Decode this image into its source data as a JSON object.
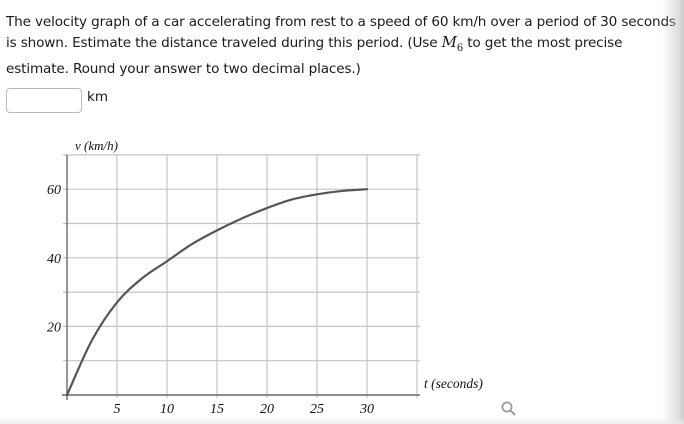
{
  "question": {
    "text_before": "The velocity graph of a car accelerating from rest to a speed of 60 km/h over a period of 30 seconds is shown. Estimate the distance traveled during this period. (Use ",
    "math_symbol": "M",
    "math_subscript": "6",
    "text_after": " to get the most precise estimate. Round your answer to two decimal places.)"
  },
  "answer": {
    "value": "",
    "placeholder": "",
    "unit": "km"
  },
  "icons": {
    "zoom": "magnifier-icon"
  },
  "colors": {
    "curve": "#555555",
    "grid": "#c4c4c4",
    "axis": "#6a6a6a",
    "text": "#1a1a1a"
  },
  "chart_data": {
    "type": "line",
    "title": "",
    "xlabel": "t (seconds)",
    "ylabel": "v (km/h)",
    "xlim": [
      0,
      35
    ],
    "ylim": [
      0,
      70
    ],
    "x_ticks": [
      5,
      10,
      15,
      20,
      25,
      30
    ],
    "x_tick_labels": [
      "5",
      "10",
      "15",
      "20",
      "25",
      "30"
    ],
    "y_ticks": [
      20,
      40,
      60
    ],
    "y_tick_labels": [
      "20",
      "40",
      "60"
    ],
    "grid": true,
    "grid_x_step": 5,
    "grid_y_step": 10,
    "legend": null,
    "series": [
      {
        "name": "velocity",
        "x": [
          0,
          2.5,
          5,
          7.5,
          10,
          12.5,
          15,
          17.5,
          20,
          22.5,
          25,
          27.5,
          30
        ],
        "values": [
          0,
          16,
          27,
          34,
          39,
          44,
          48,
          51.5,
          54.5,
          57,
          58.5,
          59.5,
          60
        ]
      }
    ]
  }
}
